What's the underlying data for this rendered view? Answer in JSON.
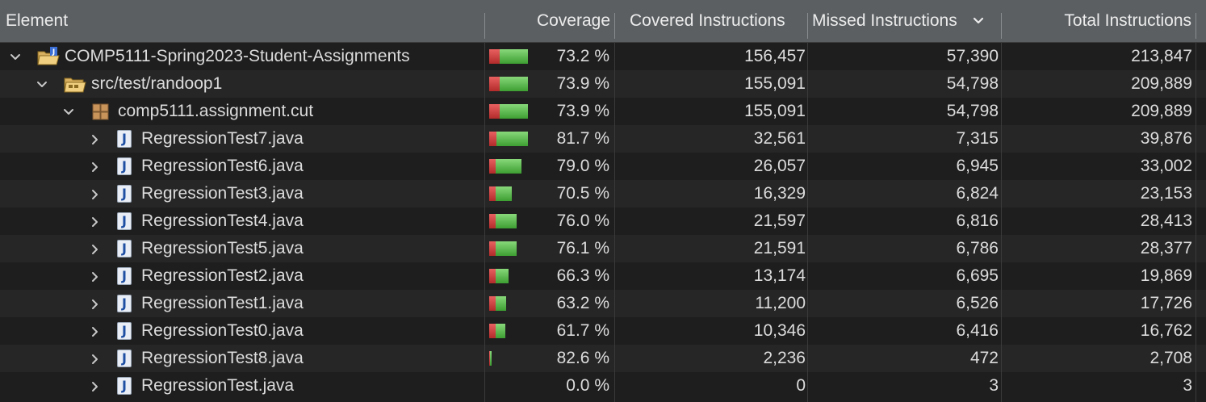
{
  "header": {
    "element": "Element",
    "coverage": "Coverage",
    "covered": "Covered Instructions",
    "missed": "Missed Instructions",
    "total": "Total Instructions",
    "sort_icon": "chevron-down-icon"
  },
  "colors": {
    "header_bg": "#5b5f62",
    "row_bg": "#1e1e1e",
    "row_alt_bg": "#262626",
    "bar_red": "#d94040",
    "bar_green": "#5cbf4c"
  },
  "rows": [
    {
      "depth": 0,
      "expanded": true,
      "icon": "project-icon",
      "name": "COMP5111-Spring2023-Student-Assignments",
      "coverage": "73.2 %",
      "covered": "156,457",
      "missed": "57,390",
      "total": "213,847"
    },
    {
      "depth": 1,
      "expanded": true,
      "icon": "source-folder-icon",
      "name": "src/test/randoop1",
      "coverage": "73.9 %",
      "covered": "155,091",
      "missed": "54,798",
      "total": "209,889"
    },
    {
      "depth": 2,
      "expanded": true,
      "icon": "package-icon",
      "name": "comp5111.assignment.cut",
      "coverage": "73.9 %",
      "covered": "155,091",
      "missed": "54,798",
      "total": "209,889"
    },
    {
      "depth": 3,
      "expanded": false,
      "icon": "java-file-icon",
      "name": "RegressionTest7.java",
      "coverage": "81.7 %",
      "covered": "32,561",
      "missed": "7,315",
      "total": "39,876"
    },
    {
      "depth": 3,
      "expanded": false,
      "icon": "java-file-icon",
      "name": "RegressionTest6.java",
      "coverage": "79.0 %",
      "covered": "26,057",
      "missed": "6,945",
      "total": "33,002"
    },
    {
      "depth": 3,
      "expanded": false,
      "icon": "java-file-icon",
      "name": "RegressionTest3.java",
      "coverage": "70.5 %",
      "covered": "16,329",
      "missed": "6,824",
      "total": "23,153"
    },
    {
      "depth": 3,
      "expanded": false,
      "icon": "java-file-icon",
      "name": "RegressionTest4.java",
      "coverage": "76.0 %",
      "covered": "21,597",
      "missed": "6,816",
      "total": "28,413"
    },
    {
      "depth": 3,
      "expanded": false,
      "icon": "java-file-icon",
      "name": "RegressionTest5.java",
      "coverage": "76.1 %",
      "covered": "21,591",
      "missed": "6,786",
      "total": "28,377"
    },
    {
      "depth": 3,
      "expanded": false,
      "icon": "java-file-icon",
      "name": "RegressionTest2.java",
      "coverage": "66.3 %",
      "covered": "13,174",
      "missed": "6,695",
      "total": "19,869"
    },
    {
      "depth": 3,
      "expanded": false,
      "icon": "java-file-icon",
      "name": "RegressionTest1.java",
      "coverage": "63.2 %",
      "covered": "11,200",
      "missed": "6,526",
      "total": "17,726"
    },
    {
      "depth": 3,
      "expanded": false,
      "icon": "java-file-icon",
      "name": "RegressionTest0.java",
      "coverage": "61.7 %",
      "covered": "10,346",
      "missed": "6,416",
      "total": "16,762"
    },
    {
      "depth": 3,
      "expanded": false,
      "icon": "java-file-icon",
      "name": "RegressionTest8.java",
      "coverage": "82.6 %",
      "covered": "2,236",
      "missed": "472",
      "total": "2,708"
    },
    {
      "depth": 3,
      "expanded": false,
      "icon": "java-file-icon",
      "name": "RegressionTest.java",
      "coverage": "0.0 %",
      "covered": "0",
      "missed": "3",
      "total": "3"
    }
  ]
}
